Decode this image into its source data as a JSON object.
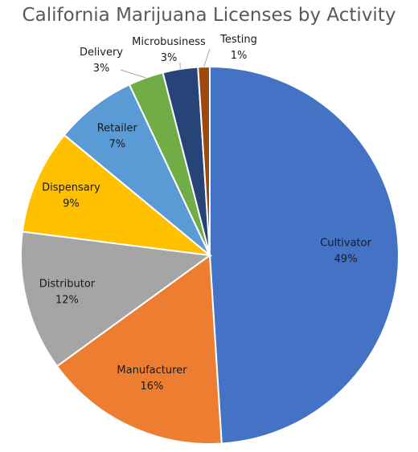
{
  "chart_data": {
    "type": "pie",
    "title": "California Marijuana Licenses by Activity",
    "start_angle_deg": 0,
    "direction": "clockwise",
    "legend": "none",
    "slices": [
      {
        "label": "Cultivator",
        "value": 49,
        "value_label": "49%",
        "color": "#4472c4"
      },
      {
        "label": "Manufacturer",
        "value": 16,
        "value_label": "16%",
        "color": "#ed7d31"
      },
      {
        "label": "Distributor",
        "value": 12,
        "value_label": "12%",
        "color": "#a5a5a5"
      },
      {
        "label": "Dispensary",
        "value": 9,
        "value_label": "9%",
        "color": "#ffc000"
      },
      {
        "label": "Retailer",
        "value": 7,
        "value_label": "7%",
        "color": "#5b9bd5"
      },
      {
        "label": "Delivery",
        "value": 3,
        "value_label": "3%",
        "color": "#70ad47"
      },
      {
        "label": "Microbusiness",
        "value": 3,
        "value_label": "3%",
        "color": "#264478"
      },
      {
        "label": "Testing",
        "value": 1,
        "value_label": "1%",
        "color": "#9e480e"
      }
    ]
  }
}
